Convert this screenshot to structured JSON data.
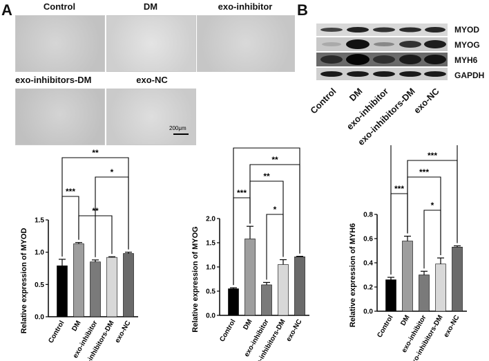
{
  "panels": {
    "a": "A",
    "b": "B"
  },
  "micrographs": {
    "labels": [
      "Control",
      "DM",
      "exo-inhibitor",
      "exo-inhibitors-DM",
      "exo-NC"
    ],
    "scale_bar": "200μm"
  },
  "blot": {
    "proteins": [
      "MYOD",
      "MYOG",
      "MYH6",
      "GAPDH"
    ],
    "lanes": [
      "Control",
      "DM",
      "exo-inhibitor",
      "exo-inhibitors-DM",
      "exo-NC"
    ]
  },
  "chart_data": [
    {
      "type": "bar",
      "categories": [
        "Control",
        "DM",
        "exo-inhibitor",
        "exo-inhibitors-DM",
        "exo-NC"
      ],
      "values": [
        0.79,
        1.13,
        0.85,
        0.92,
        0.98
      ],
      "errors": [
        0.1,
        0.02,
        0.03,
        0.01,
        0.02
      ],
      "ylabel": "Relative  expression of MYOD",
      "ylim": [
        0,
        1.5
      ],
      "yticks": [
        "0.0",
        "0.5",
        "1.0",
        "1.5"
      ],
      "colors": [
        "#000000",
        "#9e9e9e",
        "#7a7a7a",
        "#d8d8d8",
        "#6a6a6a"
      ],
      "significance": [
        {
          "from": "Control",
          "to": "exo-NC",
          "label": "**"
        },
        {
          "from": "exo-inhibitor",
          "to": "exo-NC",
          "label": "*"
        },
        {
          "from": "Control",
          "to": "DM",
          "label": "***"
        },
        {
          "from": "DM",
          "to": "exo-inhibitors-DM",
          "label": "**"
        }
      ]
    },
    {
      "type": "bar",
      "categories": [
        "Control",
        "DM",
        "exo-inhibitor",
        "exo-inhibitors-DM",
        "exo-NC"
      ],
      "values": [
        0.55,
        1.58,
        0.63,
        1.05,
        1.21
      ],
      "errors": [
        0.02,
        0.26,
        0.05,
        0.1,
        0.01
      ],
      "ylabel": "Relative  expression of MYOG",
      "ylim": [
        0,
        2.0
      ],
      "yticks": [
        "0.0",
        "0.5",
        "1.0",
        "1.5",
        "2.0"
      ],
      "colors": [
        "#000000",
        "#9e9e9e",
        "#7a7a7a",
        "#d8d8d8",
        "#6a6a6a"
      ],
      "significance": [
        {
          "from": "Control",
          "to": "exo-NC",
          "label": "***"
        },
        {
          "from": "DM",
          "to": "exo-NC",
          "label": "**"
        },
        {
          "from": "DM",
          "to": "exo-inhibitors-DM",
          "label": "**"
        },
        {
          "from": "Control",
          "to": "DM",
          "label": "***"
        },
        {
          "from": "exo-inhibitor",
          "to": "exo-inhibitors-DM",
          "label": "*"
        }
      ]
    },
    {
      "type": "bar",
      "categories": [
        "Control",
        "DM",
        "exo-inhibitor",
        "exo-inhibitors-DM",
        "exo-NC"
      ],
      "values": [
        0.26,
        0.58,
        0.3,
        0.39,
        0.53
      ],
      "errors": [
        0.02,
        0.04,
        0.03,
        0.05,
        0.01
      ],
      "ylabel": "Relative  expression of MYH6",
      "ylim": [
        0,
        0.8
      ],
      "yticks": [
        "0.0",
        "0.2",
        "0.4",
        "0.6",
        "0.8"
      ],
      "colors": [
        "#000000",
        "#9e9e9e",
        "#7a7a7a",
        "#d8d8d8",
        "#6a6a6a"
      ],
      "significance": [
        {
          "from": "Control",
          "to": "exo-NC",
          "label": "***"
        },
        {
          "from": "DM",
          "to": "exo-NC",
          "label": "***"
        },
        {
          "from": "DM",
          "to": "exo-inhibitors-DM",
          "label": "***"
        },
        {
          "from": "Control",
          "to": "DM",
          "label": "***"
        },
        {
          "from": "exo-inhibitor",
          "to": "exo-inhibitors-DM",
          "label": "*"
        }
      ]
    }
  ]
}
